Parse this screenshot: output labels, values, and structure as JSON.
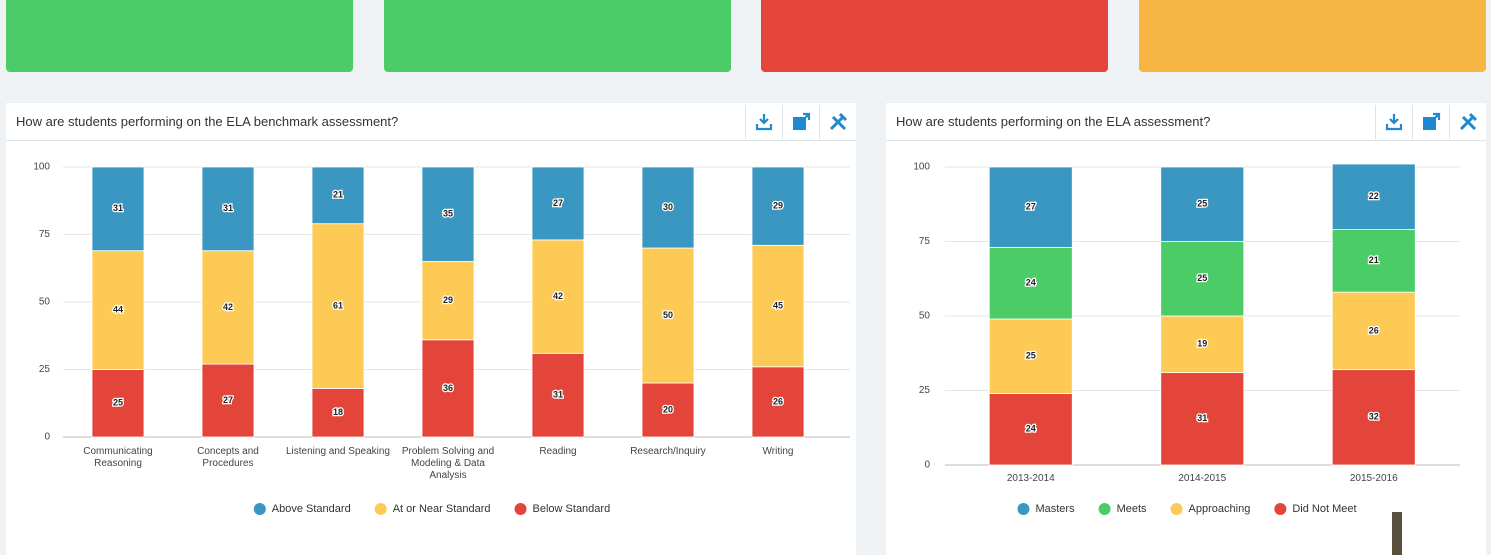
{
  "chart_data": [
    {
      "type": "bar",
      "stacked": true,
      "title": "How are students performing on the ELA benchmark assessment?",
      "categories": [
        "Communicating Reasoning",
        "Concepts and Procedures",
        "Listening and Speaking",
        "Problem Solving and Modeling & Data Analysis",
        "Reading",
        "Research/Inquiry",
        "Writing"
      ],
      "series": [
        {
          "name": "Above Standard",
          "color": "#3a97c1",
          "values": [
            31,
            31,
            21,
            35,
            27,
            30,
            29
          ]
        },
        {
          "name": "At or Near Standard",
          "color": "#fdca56",
          "values": [
            44,
            42,
            61,
            29,
            42,
            50,
            45
          ]
        },
        {
          "name": "Below Standard",
          "color": "#e4453a",
          "values": [
            25,
            27,
            18,
            36,
            31,
            20,
            26
          ]
        }
      ],
      "ylim": [
        0,
        100
      ],
      "yticks": [
        0,
        25,
        50,
        75,
        100
      ],
      "grid": true,
      "legend": "bottom"
    },
    {
      "type": "bar",
      "stacked": true,
      "title": "How are students performing on the ELA assessment?",
      "categories": [
        "2013-2014",
        "2014-2015",
        "2015-2016"
      ],
      "series": [
        {
          "name": "Masters",
          "color": "#3a97c1",
          "values": [
            27,
            25,
            22
          ]
        },
        {
          "name": "Meets",
          "color": "#4ccc66",
          "values": [
            24,
            25,
            21
          ]
        },
        {
          "name": "Approaching",
          "color": "#fdca56",
          "values": [
            25,
            19,
            26
          ]
        },
        {
          "name": "Did Not Meet",
          "color": "#e4453a",
          "values": [
            24,
            31,
            32
          ]
        }
      ],
      "ylim": [
        0,
        100
      ],
      "yticks": [
        0,
        25,
        50,
        75,
        100
      ],
      "grid": true,
      "legend": "bottom"
    }
  ]
}
